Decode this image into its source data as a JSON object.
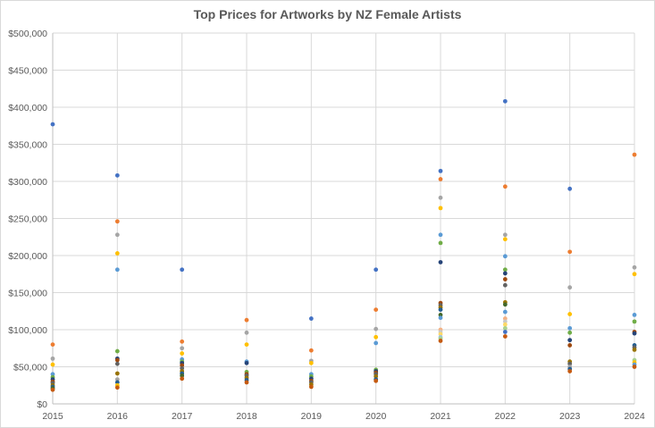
{
  "chart_data": {
    "type": "scatter",
    "title": "Top Prices for Artworks by NZ Female Artists",
    "xlabel": "",
    "ylabel": "",
    "xlim": [
      2015,
      2024
    ],
    "ylim": [
      0,
      500000
    ],
    "x_ticks": [
      "2015",
      "2016",
      "2017",
      "2018",
      "2019",
      "2020",
      "2021",
      "2022",
      "2023",
      "2024"
    ],
    "y_ticks": [
      "$0",
      "$50,000",
      "$100,000",
      "$150,000",
      "$200,000",
      "$250,000",
      "$300,000",
      "$350,000",
      "$400,000",
      "$450,000",
      "$500,000"
    ],
    "grid": true,
    "legend": "none",
    "points": [
      {
        "x": 2015,
        "y": 377000,
        "color": "#4472c4"
      },
      {
        "x": 2015,
        "y": 80000,
        "color": "#ed7d31"
      },
      {
        "x": 2015,
        "y": 61000,
        "color": "#a5a5a5"
      },
      {
        "x": 2015,
        "y": 53000,
        "color": "#ffc000"
      },
      {
        "x": 2015,
        "y": 40000,
        "color": "#5b9bd5"
      },
      {
        "x": 2015,
        "y": 36000,
        "color": "#70ad47"
      },
      {
        "x": 2015,
        "y": 33000,
        "color": "#264478"
      },
      {
        "x": 2015,
        "y": 30000,
        "color": "#9e480e"
      },
      {
        "x": 2015,
        "y": 28000,
        "color": "#636363"
      },
      {
        "x": 2015,
        "y": 25000,
        "color": "#997300"
      },
      {
        "x": 2015,
        "y": 23000,
        "color": "#255e91"
      },
      {
        "x": 2015,
        "y": 21000,
        "color": "#43682b"
      },
      {
        "x": 2015,
        "y": 19000,
        "color": "#c55a11"
      },
      {
        "x": 2016,
        "y": 308000,
        "color": "#4472c4"
      },
      {
        "x": 2016,
        "y": 246000,
        "color": "#ed7d31"
      },
      {
        "x": 2016,
        "y": 228000,
        "color": "#a5a5a5"
      },
      {
        "x": 2016,
        "y": 203000,
        "color": "#ffc000"
      },
      {
        "x": 2016,
        "y": 181000,
        "color": "#5b9bd5"
      },
      {
        "x": 2016,
        "y": 71000,
        "color": "#70ad47"
      },
      {
        "x": 2016,
        "y": 61000,
        "color": "#264478"
      },
      {
        "x": 2016,
        "y": 59000,
        "color": "#9e480e"
      },
      {
        "x": 2016,
        "y": 54000,
        "color": "#636363"
      },
      {
        "x": 2016,
        "y": 41000,
        "color": "#997300"
      },
      {
        "x": 2016,
        "y": 33000,
        "color": "#a5a5a5"
      },
      {
        "x": 2016,
        "y": 29000,
        "color": "#255e91"
      },
      {
        "x": 2016,
        "y": 25000,
        "color": "#ffc000"
      },
      {
        "x": 2016,
        "y": 22000,
        "color": "#c55a11"
      },
      {
        "x": 2017,
        "y": 181000,
        "color": "#4472c4"
      },
      {
        "x": 2017,
        "y": 84000,
        "color": "#ed7d31"
      },
      {
        "x": 2017,
        "y": 75000,
        "color": "#a5a5a5"
      },
      {
        "x": 2017,
        "y": 68000,
        "color": "#ffc000"
      },
      {
        "x": 2017,
        "y": 60000,
        "color": "#5b9bd5"
      },
      {
        "x": 2017,
        "y": 57000,
        "color": "#70ad47"
      },
      {
        "x": 2017,
        "y": 55000,
        "color": "#264478"
      },
      {
        "x": 2017,
        "y": 52000,
        "color": "#9e480e"
      },
      {
        "x": 2017,
        "y": 48000,
        "color": "#636363"
      },
      {
        "x": 2017,
        "y": 44000,
        "color": "#997300"
      },
      {
        "x": 2017,
        "y": 41000,
        "color": "#255e91"
      },
      {
        "x": 2017,
        "y": 38000,
        "color": "#43682b"
      },
      {
        "x": 2017,
        "y": 34000,
        "color": "#c55a11"
      },
      {
        "x": 2018,
        "y": 113000,
        "color": "#ed7d31"
      },
      {
        "x": 2018,
        "y": 96000,
        "color": "#a5a5a5"
      },
      {
        "x": 2018,
        "y": 80000,
        "color": "#ffc000"
      },
      {
        "x": 2018,
        "y": 57000,
        "color": "#5b9bd5"
      },
      {
        "x": 2018,
        "y": 55000,
        "color": "#264478"
      },
      {
        "x": 2018,
        "y": 43000,
        "color": "#70ad47"
      },
      {
        "x": 2018,
        "y": 40000,
        "color": "#9e480e"
      },
      {
        "x": 2018,
        "y": 38000,
        "color": "#636363"
      },
      {
        "x": 2018,
        "y": 35000,
        "color": "#997300"
      },
      {
        "x": 2018,
        "y": 32000,
        "color": "#255e91"
      },
      {
        "x": 2018,
        "y": 29000,
        "color": "#c55a11"
      },
      {
        "x": 2019,
        "y": 115000,
        "color": "#4472c4"
      },
      {
        "x": 2019,
        "y": 72000,
        "color": "#ed7d31"
      },
      {
        "x": 2019,
        "y": 58000,
        "color": "#a5a5a5"
      },
      {
        "x": 2019,
        "y": 55000,
        "color": "#ffc000"
      },
      {
        "x": 2019,
        "y": 40000,
        "color": "#5b9bd5"
      },
      {
        "x": 2019,
        "y": 37000,
        "color": "#70ad47"
      },
      {
        "x": 2019,
        "y": 34000,
        "color": "#264478"
      },
      {
        "x": 2019,
        "y": 31000,
        "color": "#9e480e"
      },
      {
        "x": 2019,
        "y": 29000,
        "color": "#636363"
      },
      {
        "x": 2019,
        "y": 26000,
        "color": "#997300"
      },
      {
        "x": 2019,
        "y": 23000,
        "color": "#c55a11"
      },
      {
        "x": 2020,
        "y": 181000,
        "color": "#4472c4"
      },
      {
        "x": 2020,
        "y": 127000,
        "color": "#ed7d31"
      },
      {
        "x": 2020,
        "y": 101000,
        "color": "#a5a5a5"
      },
      {
        "x": 2020,
        "y": 90000,
        "color": "#ffc000"
      },
      {
        "x": 2020,
        "y": 82000,
        "color": "#5b9bd5"
      },
      {
        "x": 2020,
        "y": 46000,
        "color": "#70ad47"
      },
      {
        "x": 2020,
        "y": 44000,
        "color": "#264478"
      },
      {
        "x": 2020,
        "y": 42000,
        "color": "#9e480e"
      },
      {
        "x": 2020,
        "y": 40000,
        "color": "#636363"
      },
      {
        "x": 2020,
        "y": 37000,
        "color": "#997300"
      },
      {
        "x": 2020,
        "y": 33000,
        "color": "#255e91"
      },
      {
        "x": 2020,
        "y": 31000,
        "color": "#c55a11"
      },
      {
        "x": 2021,
        "y": 314000,
        "color": "#4472c4"
      },
      {
        "x": 2021,
        "y": 303000,
        "color": "#ed7d31"
      },
      {
        "x": 2021,
        "y": 278000,
        "color": "#a5a5a5"
      },
      {
        "x": 2021,
        "y": 264000,
        "color": "#ffc000"
      },
      {
        "x": 2021,
        "y": 228000,
        "color": "#5b9bd5"
      },
      {
        "x": 2021,
        "y": 217000,
        "color": "#70ad47"
      },
      {
        "x": 2021,
        "y": 191000,
        "color": "#264478"
      },
      {
        "x": 2021,
        "y": 136000,
        "color": "#9e480e"
      },
      {
        "x": 2021,
        "y": 133000,
        "color": "#636363"
      },
      {
        "x": 2021,
        "y": 130000,
        "color": "#997300"
      },
      {
        "x": 2021,
        "y": 127000,
        "color": "#255e91"
      },
      {
        "x": 2021,
        "y": 120000,
        "color": "#43682b"
      },
      {
        "x": 2021,
        "y": 116000,
        "color": "#5b9bd5"
      },
      {
        "x": 2021,
        "y": 100000,
        "color": "#f4b183"
      },
      {
        "x": 2021,
        "y": 97000,
        "color": "#c9c9c9"
      },
      {
        "x": 2021,
        "y": 94000,
        "color": "#ffd966"
      },
      {
        "x": 2021,
        "y": 90000,
        "color": "#9dc3e6"
      },
      {
        "x": 2021,
        "y": 88000,
        "color": "#a9d18e"
      },
      {
        "x": 2021,
        "y": 85000,
        "color": "#c55a11"
      },
      {
        "x": 2022,
        "y": 408000,
        "color": "#4472c4"
      },
      {
        "x": 2022,
        "y": 293000,
        "color": "#ed7d31"
      },
      {
        "x": 2022,
        "y": 228000,
        "color": "#a5a5a5"
      },
      {
        "x": 2022,
        "y": 222000,
        "color": "#ffc000"
      },
      {
        "x": 2022,
        "y": 199000,
        "color": "#5b9bd5"
      },
      {
        "x": 2022,
        "y": 181000,
        "color": "#70ad47"
      },
      {
        "x": 2022,
        "y": 176000,
        "color": "#264478"
      },
      {
        "x": 2022,
        "y": 168000,
        "color": "#9e480e"
      },
      {
        "x": 2022,
        "y": 160000,
        "color": "#636363"
      },
      {
        "x": 2022,
        "y": 137000,
        "color": "#997300"
      },
      {
        "x": 2022,
        "y": 134000,
        "color": "#43682b"
      },
      {
        "x": 2022,
        "y": 124000,
        "color": "#5b9bd5"
      },
      {
        "x": 2022,
        "y": 115000,
        "color": "#f4b183"
      },
      {
        "x": 2022,
        "y": 111000,
        "color": "#c9c9c9"
      },
      {
        "x": 2022,
        "y": 107000,
        "color": "#ffd966"
      },
      {
        "x": 2022,
        "y": 102000,
        "color": "#a9d18e"
      },
      {
        "x": 2022,
        "y": 97000,
        "color": "#4472c4"
      },
      {
        "x": 2022,
        "y": 91000,
        "color": "#c55a11"
      },
      {
        "x": 2023,
        "y": 290000,
        "color": "#4472c4"
      },
      {
        "x": 2023,
        "y": 205000,
        "color": "#ed7d31"
      },
      {
        "x": 2023,
        "y": 157000,
        "color": "#a5a5a5"
      },
      {
        "x": 2023,
        "y": 121000,
        "color": "#ffc000"
      },
      {
        "x": 2023,
        "y": 102000,
        "color": "#5b9bd5"
      },
      {
        "x": 2023,
        "y": 96000,
        "color": "#70ad47"
      },
      {
        "x": 2023,
        "y": 86000,
        "color": "#264478"
      },
      {
        "x": 2023,
        "y": 79000,
        "color": "#9e480e"
      },
      {
        "x": 2023,
        "y": 57000,
        "color": "#997300"
      },
      {
        "x": 2023,
        "y": 54000,
        "color": "#636363"
      },
      {
        "x": 2023,
        "y": 50000,
        "color": "#a5a5a5"
      },
      {
        "x": 2023,
        "y": 47000,
        "color": "#255e91"
      },
      {
        "x": 2023,
        "y": 44000,
        "color": "#c55a11"
      },
      {
        "x": 2024,
        "y": 336000,
        "color": "#ed7d31"
      },
      {
        "x": 2024,
        "y": 184000,
        "color": "#a5a5a5"
      },
      {
        "x": 2024,
        "y": 175000,
        "color": "#ffc000"
      },
      {
        "x": 2024,
        "y": 120000,
        "color": "#5b9bd5"
      },
      {
        "x": 2024,
        "y": 111000,
        "color": "#70ad47"
      },
      {
        "x": 2024,
        "y": 97000,
        "color": "#9e480e"
      },
      {
        "x": 2024,
        "y": 95000,
        "color": "#264478"
      },
      {
        "x": 2024,
        "y": 79000,
        "color": "#255e91"
      },
      {
        "x": 2024,
        "y": 76000,
        "color": "#636363"
      },
      {
        "x": 2024,
        "y": 73000,
        "color": "#997300"
      },
      {
        "x": 2024,
        "y": 59000,
        "color": "#a9d18e"
      },
      {
        "x": 2024,
        "y": 56000,
        "color": "#ffc000"
      },
      {
        "x": 2024,
        "y": 53000,
        "color": "#5b9bd5"
      },
      {
        "x": 2024,
        "y": 50000,
        "color": "#c55a11"
      }
    ]
  }
}
